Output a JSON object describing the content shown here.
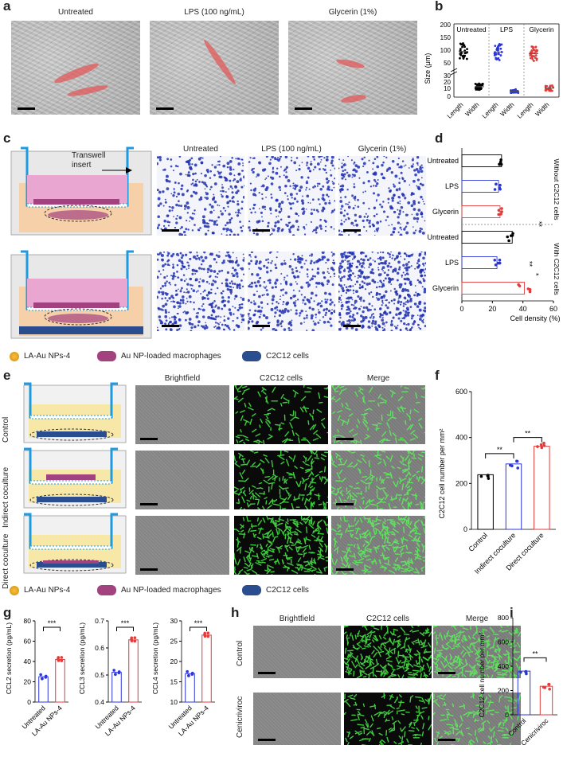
{
  "panels": {
    "a": {
      "letter": "a",
      "titles": [
        "Untreated",
        "LPS (100 ng/mL)",
        "Glycerin (1%)"
      ]
    },
    "b": {
      "letter": "b",
      "groups": [
        "Untreated",
        "LPS",
        "Glycerin"
      ],
      "ylabel": "Size (μm)",
      "xticks": [
        "Length",
        "Width",
        "Length",
        "Width",
        "Length",
        "Width"
      ],
      "yticks_upper": [
        "50",
        "100",
        "150",
        "200"
      ],
      "yticks_lower": [
        "0",
        "10",
        "20",
        "30"
      ]
    },
    "c": {
      "letter": "c",
      "insert_label": "Transwell\ninsert",
      "titles": [
        "Untreated",
        "LPS (100 ng/mL)",
        "Glycerin (1%)"
      ]
    },
    "d": {
      "letter": "d",
      "xlabel": "Cell density (%)",
      "side_top": "Without C2C12 cells",
      "side_bottom": "With C2C12 cells",
      "sig1": "**",
      "sig2": "**",
      "sig3": "*"
    },
    "legend1": {
      "np": "LA-Au NPs-4",
      "mac": "Au NP-loaded macrophages",
      "c2c12": "C2C12 cells"
    },
    "e": {
      "letter": "e",
      "titles": [
        "Brightfield",
        "C2C12 cells",
        "Merge"
      ],
      "rows": [
        "Control",
        "Indirect coculture",
        "Direct coculture"
      ]
    },
    "f": {
      "letter": "f",
      "ylabel": "C2C12 cell number per mm²",
      "sig": [
        "**",
        "**"
      ]
    },
    "legend2": {
      "np": "LA-Au NPs-4",
      "mac": "Au NP-loaded macrophages",
      "c2c12": "C2C12 cells"
    },
    "g": {
      "letter": "g",
      "sig": "***"
    },
    "h": {
      "letter": "h",
      "titles": [
        "Brightfield",
        "C2C12 cells",
        "Merge"
      ],
      "rows": [
        "Control",
        "Cenicriviroc"
      ]
    },
    "i": {
      "letter": "i",
      "ylabel": "C2C12 cell number per mm²",
      "sig": "**"
    }
  },
  "chart_data": [
    {
      "id": "b",
      "type": "scatter",
      "categories": [
        "Untreated Length",
        "Untreated Width",
        "LPS Length",
        "LPS Width",
        "Glycerin Length",
        "Glycerin Width"
      ],
      "values": [
        100,
        14,
        98,
        8,
        92,
        12
      ],
      "ylabel": "Size (μm)",
      "ylim": [
        0,
        200
      ]
    },
    {
      "id": "d",
      "type": "bar",
      "orientation": "horizontal",
      "categories": [
        "Untreated",
        "LPS",
        "Glycerin",
        "Untreated",
        "LPS",
        "Glycerin"
      ],
      "values": [
        26,
        24,
        25,
        33,
        23,
        41
      ],
      "colors": [
        "#000000",
        "#2b35d8",
        "#e23b3b",
        "#000000",
        "#2b35d8",
        "#e23b3b"
      ],
      "xlabel": "Cell density (%)",
      "xlim": [
        0,
        60
      ],
      "xticks": [
        "0",
        "20",
        "40",
        "60"
      ]
    },
    {
      "id": "f",
      "type": "bar",
      "categories": [
        "Control",
        "Indirect coculture",
        "Direct coculture"
      ],
      "values": [
        238,
        285,
        362
      ],
      "colors": [
        "#000000",
        "#2b35d8",
        "#e23b3b"
      ],
      "ylabel": "C2C12 cell number per mm²",
      "ylim": [
        0,
        600
      ],
      "yticks": [
        "0",
        "200",
        "400",
        "600"
      ]
    },
    {
      "id": "g1",
      "type": "bar",
      "categories": [
        "Untreated",
        "LA-Au NPs-4"
      ],
      "values": [
        25,
        42
      ],
      "colors": [
        "#2b35d8",
        "#e23b3b"
      ],
      "ylabel": "CCL2 secretion (pg/mL)",
      "ylim": [
        0,
        80
      ],
      "yticks": [
        "0",
        "20",
        "40",
        "60",
        "80"
      ]
    },
    {
      "id": "g2",
      "type": "bar",
      "categories": [
        "Untreated",
        "LA-Au NPs-4"
      ],
      "values": [
        0.51,
        0.63
      ],
      "colors": [
        "#2b35d8",
        "#e23b3b"
      ],
      "ylabel": "CCL3 secretion (pg/mL)",
      "ylim": [
        0.4,
        0.7
      ],
      "yticks": [
        "0.4",
        "0.5",
        "0.6",
        "0.7"
      ]
    },
    {
      "id": "g3",
      "type": "bar",
      "categories": [
        "Untreated",
        "LA-Au NPs-4"
      ],
      "values": [
        17,
        26.5
      ],
      "colors": [
        "#2b35d8",
        "#e23b3b"
      ],
      "ylabel": "CCL4 secretion (pg/mL)",
      "ylim": [
        10,
        30
      ],
      "yticks": [
        "10",
        "15",
        "20",
        "25",
        "30"
      ]
    },
    {
      "id": "i",
      "type": "bar",
      "categories": [
        "Control",
        "Cenicriviroc"
      ],
      "values": [
        360,
        235
      ],
      "colors": [
        "#2b35d8",
        "#e23b3b"
      ],
      "ylabel": "C2C12 cell number per mm²",
      "ylim": [
        0,
        800
      ],
      "yticks": [
        "0",
        "200",
        "400",
        "600",
        "800"
      ]
    }
  ]
}
